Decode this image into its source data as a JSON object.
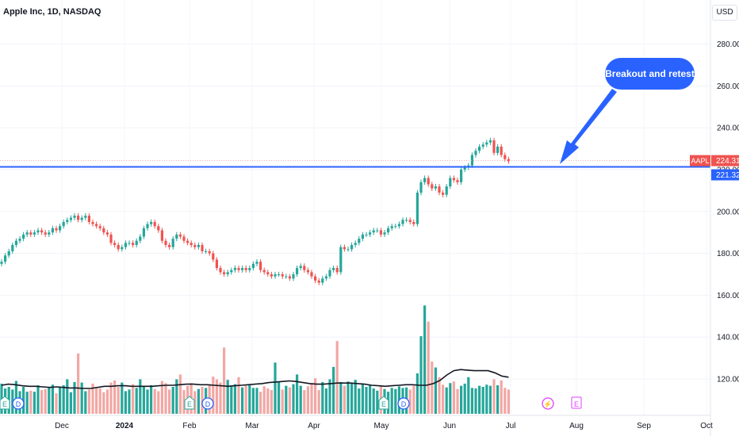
{
  "header": {
    "title": "Apple Inc, 1D, NASDAQ",
    "currency": "USD"
  },
  "callout": {
    "text": "Breakout and retest"
  },
  "chart_data": {
    "type": "candlestick",
    "symbol": "AAPL",
    "title": "Apple Inc, 1D, NASDAQ",
    "y_ticks": [
      280,
      260,
      240,
      220,
      200,
      180,
      160,
      140,
      120
    ],
    "y_tick_labels": [
      "280.00",
      "260.00",
      "240.00",
      "220.00",
      "200.00",
      "180.00",
      "160.00",
      "140.00",
      "120.00"
    ],
    "x_ticks": [
      "Dec",
      "2024",
      "Feb",
      "Mar",
      "Apr",
      "May",
      "Jun",
      "Jul",
      "Aug",
      "Sep",
      "Oct"
    ],
    "last_price": 224.31,
    "last_price_label": "224.31",
    "horizontal_level": 221.32,
    "horizontal_level_label": "221.32",
    "symbol_tag": "AAPL",
    "annotation": "Breakout and retest",
    "close_series": [
      176,
      179,
      181,
      184,
      186,
      187,
      189,
      190,
      189,
      190,
      191,
      190,
      189,
      190,
      192,
      191,
      193,
      195,
      196,
      197,
      198,
      196,
      197,
      198,
      195,
      194,
      193,
      192,
      190,
      189,
      185,
      184,
      182,
      183,
      185,
      185,
      184,
      186,
      188,
      192,
      194,
      195,
      193,
      191,
      186,
      184,
      183,
      187,
      189,
      188,
      186,
      185,
      184,
      183,
      184,
      181,
      181,
      180,
      177,
      173,
      171,
      170,
      171,
      172,
      173,
      172,
      173,
      172,
      173,
      175,
      176,
      172,
      171,
      170,
      169,
      170,
      170,
      169,
      169,
      168,
      170,
      173,
      174,
      172,
      171,
      169,
      167,
      166,
      168,
      169,
      172,
      173,
      171,
      183,
      182,
      182,
      184,
      185,
      187,
      189,
      189,
      190,
      191,
      191,
      189,
      190,
      192,
      193,
      193,
      194,
      196,
      196,
      195,
      194,
      209,
      214,
      216,
      213,
      211,
      212,
      209,
      208,
      212,
      216,
      215,
      214,
      220,
      221,
      222,
      227,
      229,
      231,
      232,
      233,
      234,
      228,
      231,
      227,
      225,
      224
    ],
    "volume_series": [
      56,
      47,
      50,
      45,
      61,
      42,
      50,
      41,
      43,
      41,
      53,
      44,
      46,
      48,
      54,
      38,
      49,
      53,
      64,
      40,
      59,
      112,
      58,
      42,
      45,
      56,
      47,
      47,
      40,
      45,
      58,
      62,
      50,
      58,
      42,
      45,
      55,
      48,
      64,
      52,
      45,
      53,
      46,
      42,
      61,
      57,
      45,
      50,
      64,
      73,
      44,
      52,
      57,
      42,
      46,
      50,
      48,
      55,
      69,
      64,
      58,
      123,
      63,
      51,
      55,
      68,
      49,
      52,
      53,
      48,
      48,
      41,
      51,
      47,
      44,
      95,
      60,
      45,
      52,
      49,
      55,
      73,
      52,
      44,
      51,
      57,
      66,
      44,
      59,
      47,
      64,
      87,
      135,
      59,
      52,
      60,
      57,
      63,
      47,
      55,
      50,
      53,
      47,
      43,
      52,
      46,
      41,
      48,
      46,
      51,
      48,
      49,
      45,
      52,
      75,
      144,
      201,
      171,
      97,
      86,
      68,
      54,
      49,
      57,
      60,
      46,
      52,
      56,
      68,
      48,
      47,
      52,
      50,
      54,
      52,
      64,
      53,
      62,
      48,
      45
    ],
    "volume_ma_levels": [
      53,
      55,
      54,
      52,
      51,
      51,
      50,
      49,
      50,
      49,
      48,
      48,
      47,
      47,
      49,
      51,
      51,
      52,
      52,
      51,
      51,
      51,
      51,
      52,
      53,
      53,
      54,
      55,
      55,
      54,
      54,
      53,
      52,
      51,
      52,
      53,
      54,
      55,
      56,
      58,
      59,
      60,
      61,
      60,
      58,
      56,
      55,
      55,
      56,
      57,
      57,
      57,
      56,
      55,
      53,
      52,
      51,
      52,
      53,
      54,
      54,
      53,
      53,
      56,
      62,
      72,
      80,
      82,
      81,
      80,
      80,
      80,
      76,
      70,
      68
    ]
  }
}
